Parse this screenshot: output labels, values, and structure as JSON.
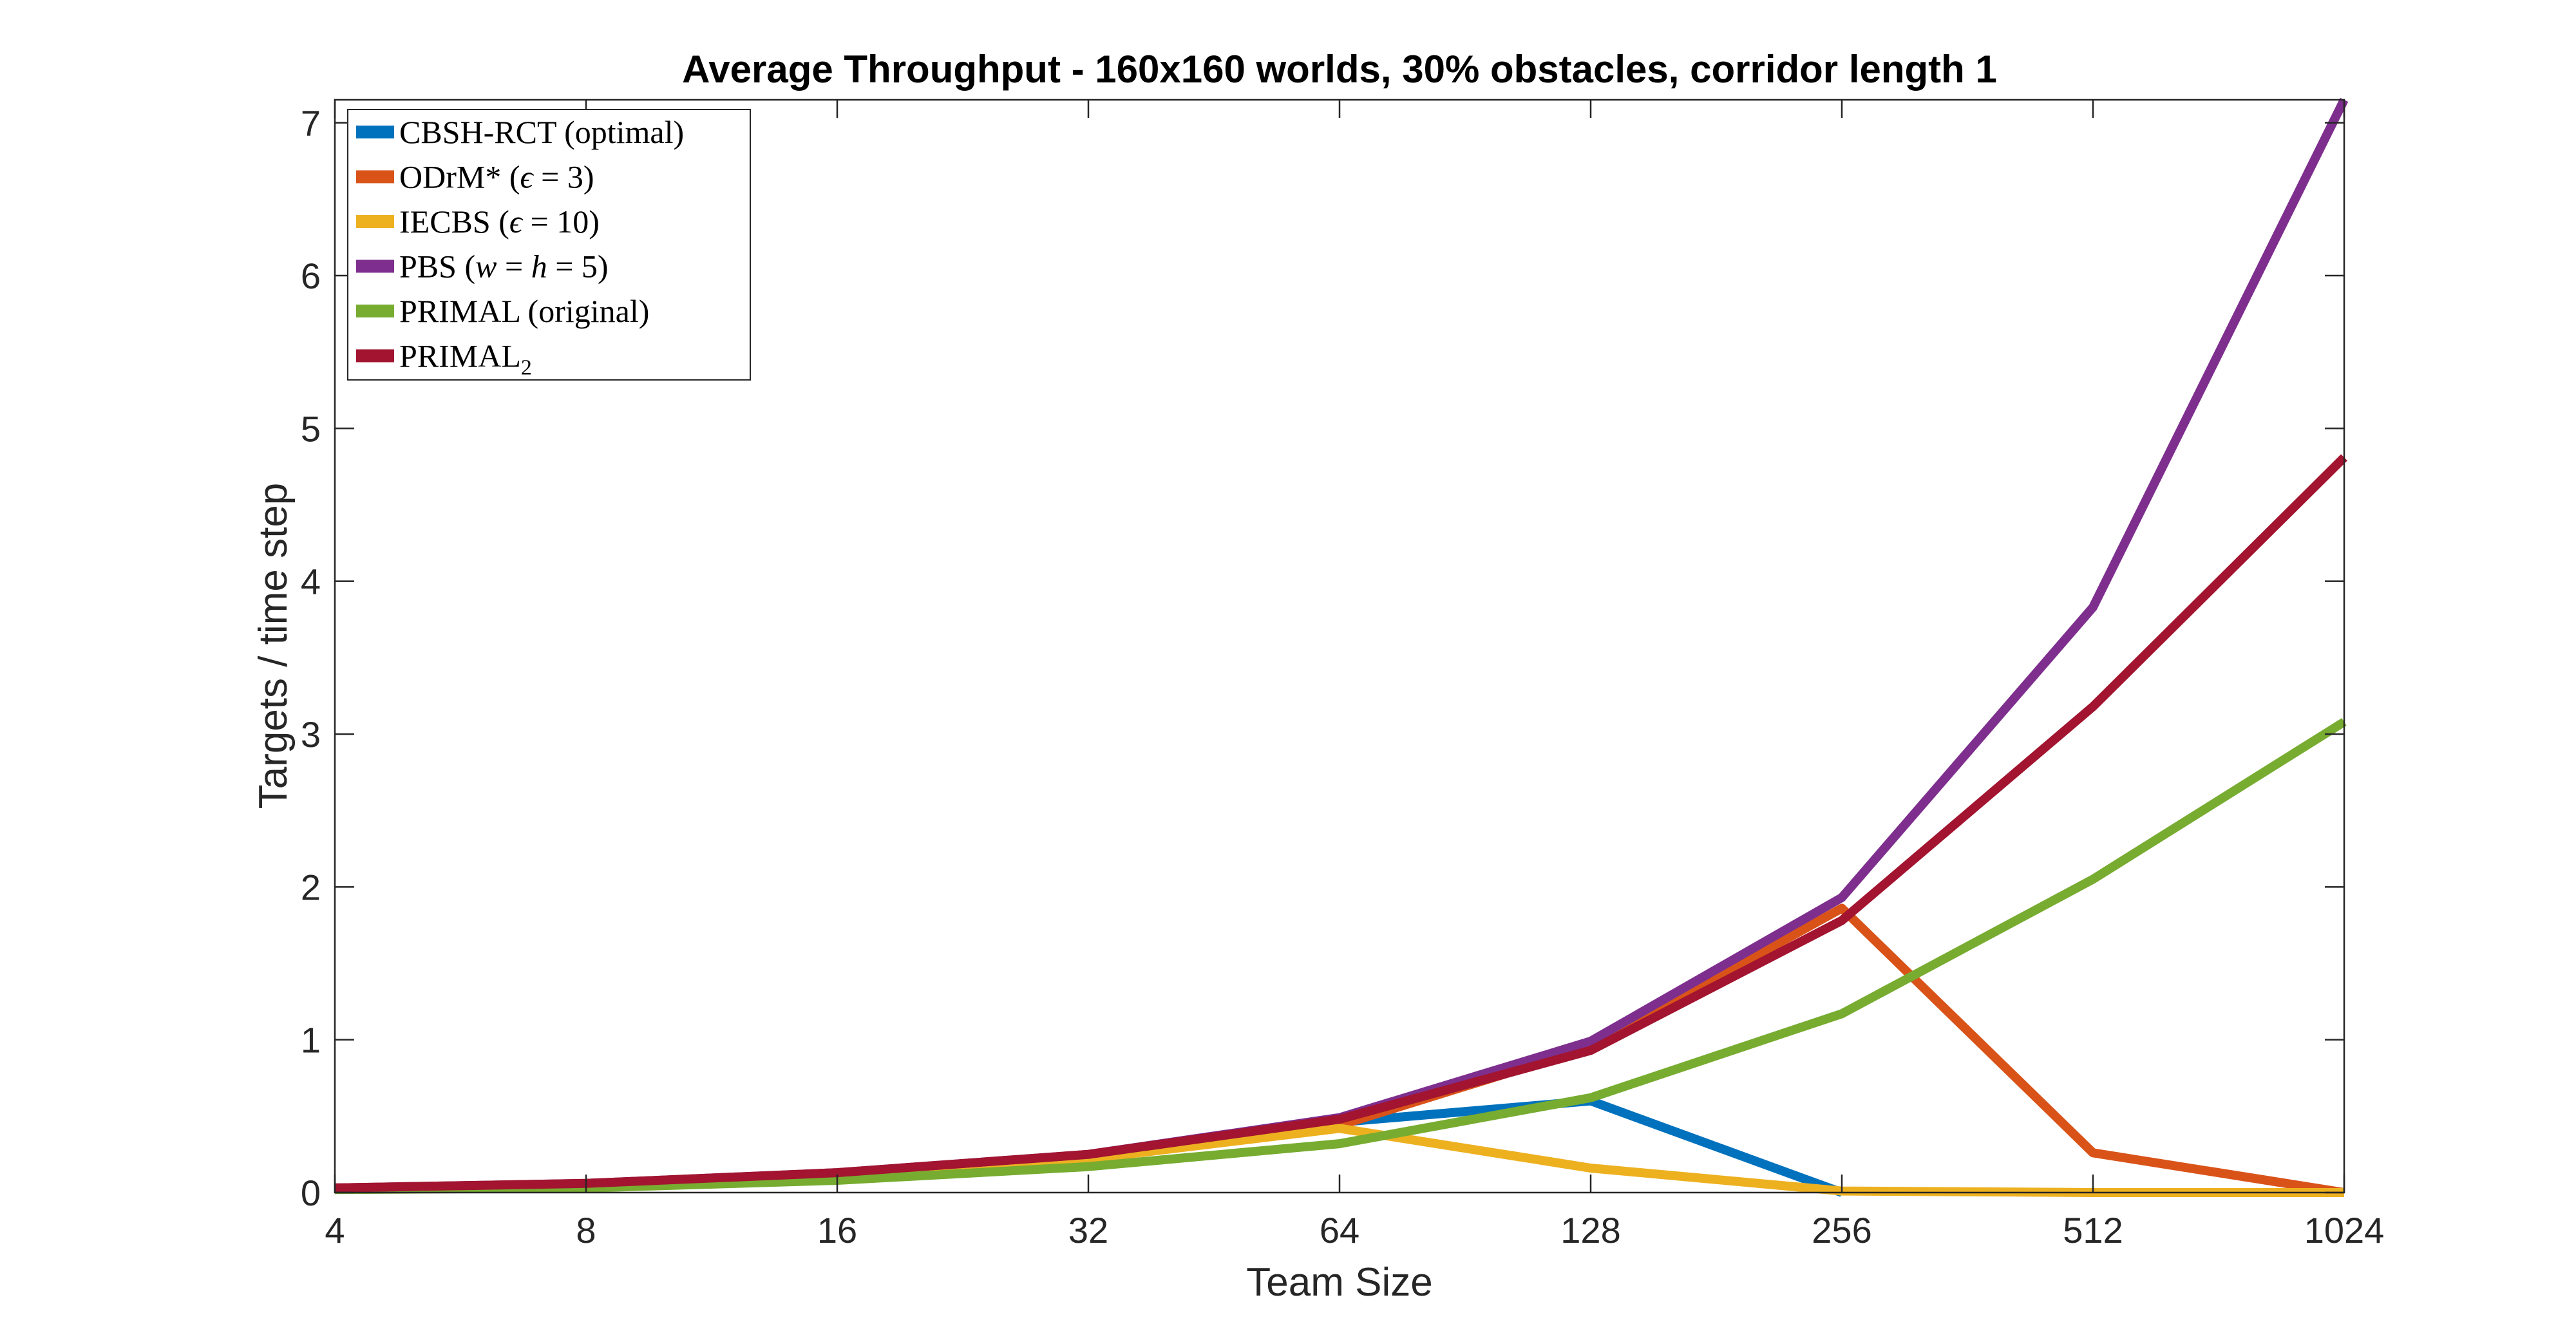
{
  "chart_data": {
    "type": "line",
    "title": "Average Throughput - 160x160 worlds, 30% obstacles, corridor length 1",
    "xlabel": "Team Size",
    "ylabel": "Targets / time step",
    "x": [
      4,
      8,
      16,
      32,
      64,
      128,
      256,
      512,
      1024
    ],
    "x_scale": "log2",
    "xlim": [
      4,
      1024
    ],
    "ylim": [
      0,
      7.15
    ],
    "xticks": [
      "4",
      "8",
      "16",
      "32",
      "64",
      "128",
      "256",
      "512",
      "1024"
    ],
    "yticks": [
      0,
      1,
      2,
      3,
      4,
      5,
      6,
      7
    ],
    "grid": false,
    "legend_position": "top-left",
    "series": [
      {
        "name": "CBSH-RCT (optimal)",
        "color": "#0072BD",
        "values": [
          0.03,
          0.05,
          0.12,
          0.24,
          0.46,
          0.6,
          0.0,
          null,
          null
        ]
      },
      {
        "name": "ODrM* (ϵ = 3)",
        "color": "#D95319",
        "values": [
          0.03,
          0.05,
          0.11,
          0.22,
          0.44,
          0.95,
          1.86,
          0.26,
          0.0
        ]
      },
      {
        "name": "IECBS (ϵ = 10)",
        "color": "#EDB120",
        "values": [
          0.03,
          0.05,
          0.11,
          0.22,
          0.42,
          0.16,
          0.01,
          0.0,
          0.0
        ]
      },
      {
        "name": "PBS (w = h = 5)",
        "color": "#7E2F8E",
        "values": [
          0.03,
          0.06,
          0.13,
          0.25,
          0.49,
          0.99,
          1.93,
          3.83,
          7.15
        ]
      },
      {
        "name": "PRIMAL (original)",
        "color": "#77AC30",
        "values": [
          0.02,
          0.03,
          0.08,
          0.17,
          0.32,
          0.62,
          1.17,
          2.05,
          3.08
        ]
      },
      {
        "name": "PRIMAL2",
        "color": "#A2142F",
        "values": [
          0.03,
          0.06,
          0.13,
          0.25,
          0.48,
          0.93,
          1.78,
          3.18,
          4.81
        ]
      }
    ]
  }
}
